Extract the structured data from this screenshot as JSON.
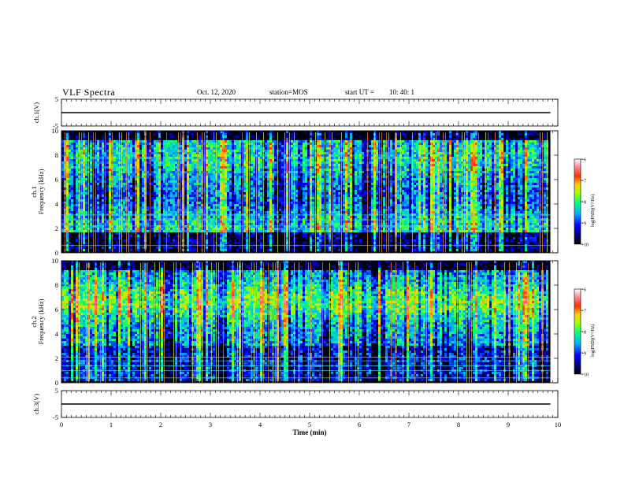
{
  "header": {
    "title": "VLF Spectra",
    "date": "Oct. 12, 2020",
    "station": "station=MOS",
    "start_label": "start UT =",
    "start_value": "10: 40: 1"
  },
  "chart_data": [
    {
      "type": "line",
      "panel": "ch1-waveform",
      "ylabel": "ch.1(V)",
      "ylim": [
        -5,
        5
      ],
      "yticks": [
        -5,
        5
      ],
      "xlim": [
        0,
        10
      ],
      "series": [
        {
          "x": [
            0,
            9.85
          ],
          "y": [
            0,
            0
          ]
        }
      ]
    },
    {
      "type": "heatmap",
      "panel": "ch1-spectrogram",
      "ylabel": "ch.1\nFrequency (kHz)",
      "ylim": [
        0,
        10
      ],
      "yticks": [
        0,
        2,
        4,
        6,
        8,
        10
      ],
      "xlim": [
        0,
        10
      ],
      "data_end_min": 9.85,
      "colorbar": {
        "label": "log(PSD)(V²/Hz)",
        "range": [
          -10,
          -6
        ],
        "ticks": [
          -10,
          -9,
          -8,
          -7,
          -6
        ]
      }
    },
    {
      "type": "heatmap",
      "panel": "ch2-spectrogram",
      "ylabel": "ch.2\nFrequency (kHz)",
      "ylim": [
        0,
        10
      ],
      "yticks": [
        0,
        2,
        4,
        6,
        8,
        10
      ],
      "xlim": [
        0,
        10
      ],
      "data_end_min": 9.85,
      "colorbar": {
        "label": "log(PSD)(V²/Hz)",
        "range": [
          -10,
          -6
        ],
        "ticks": [
          -10,
          -9,
          -8,
          -7,
          -6
        ]
      }
    },
    {
      "type": "line",
      "panel": "ch3-waveform",
      "ylabel": "ch.3(V)",
      "ylim": [
        -5,
        5
      ],
      "yticks": [
        -5,
        5
      ],
      "xlim": [
        0,
        10
      ],
      "xticks": [
        0,
        1,
        2,
        3,
        4,
        5,
        6,
        7,
        8,
        9,
        10
      ],
      "xlabel": "Time (min)",
      "series": [
        {
          "x": [
            0,
            9.85
          ],
          "y": [
            0,
            0
          ]
        }
      ]
    }
  ]
}
